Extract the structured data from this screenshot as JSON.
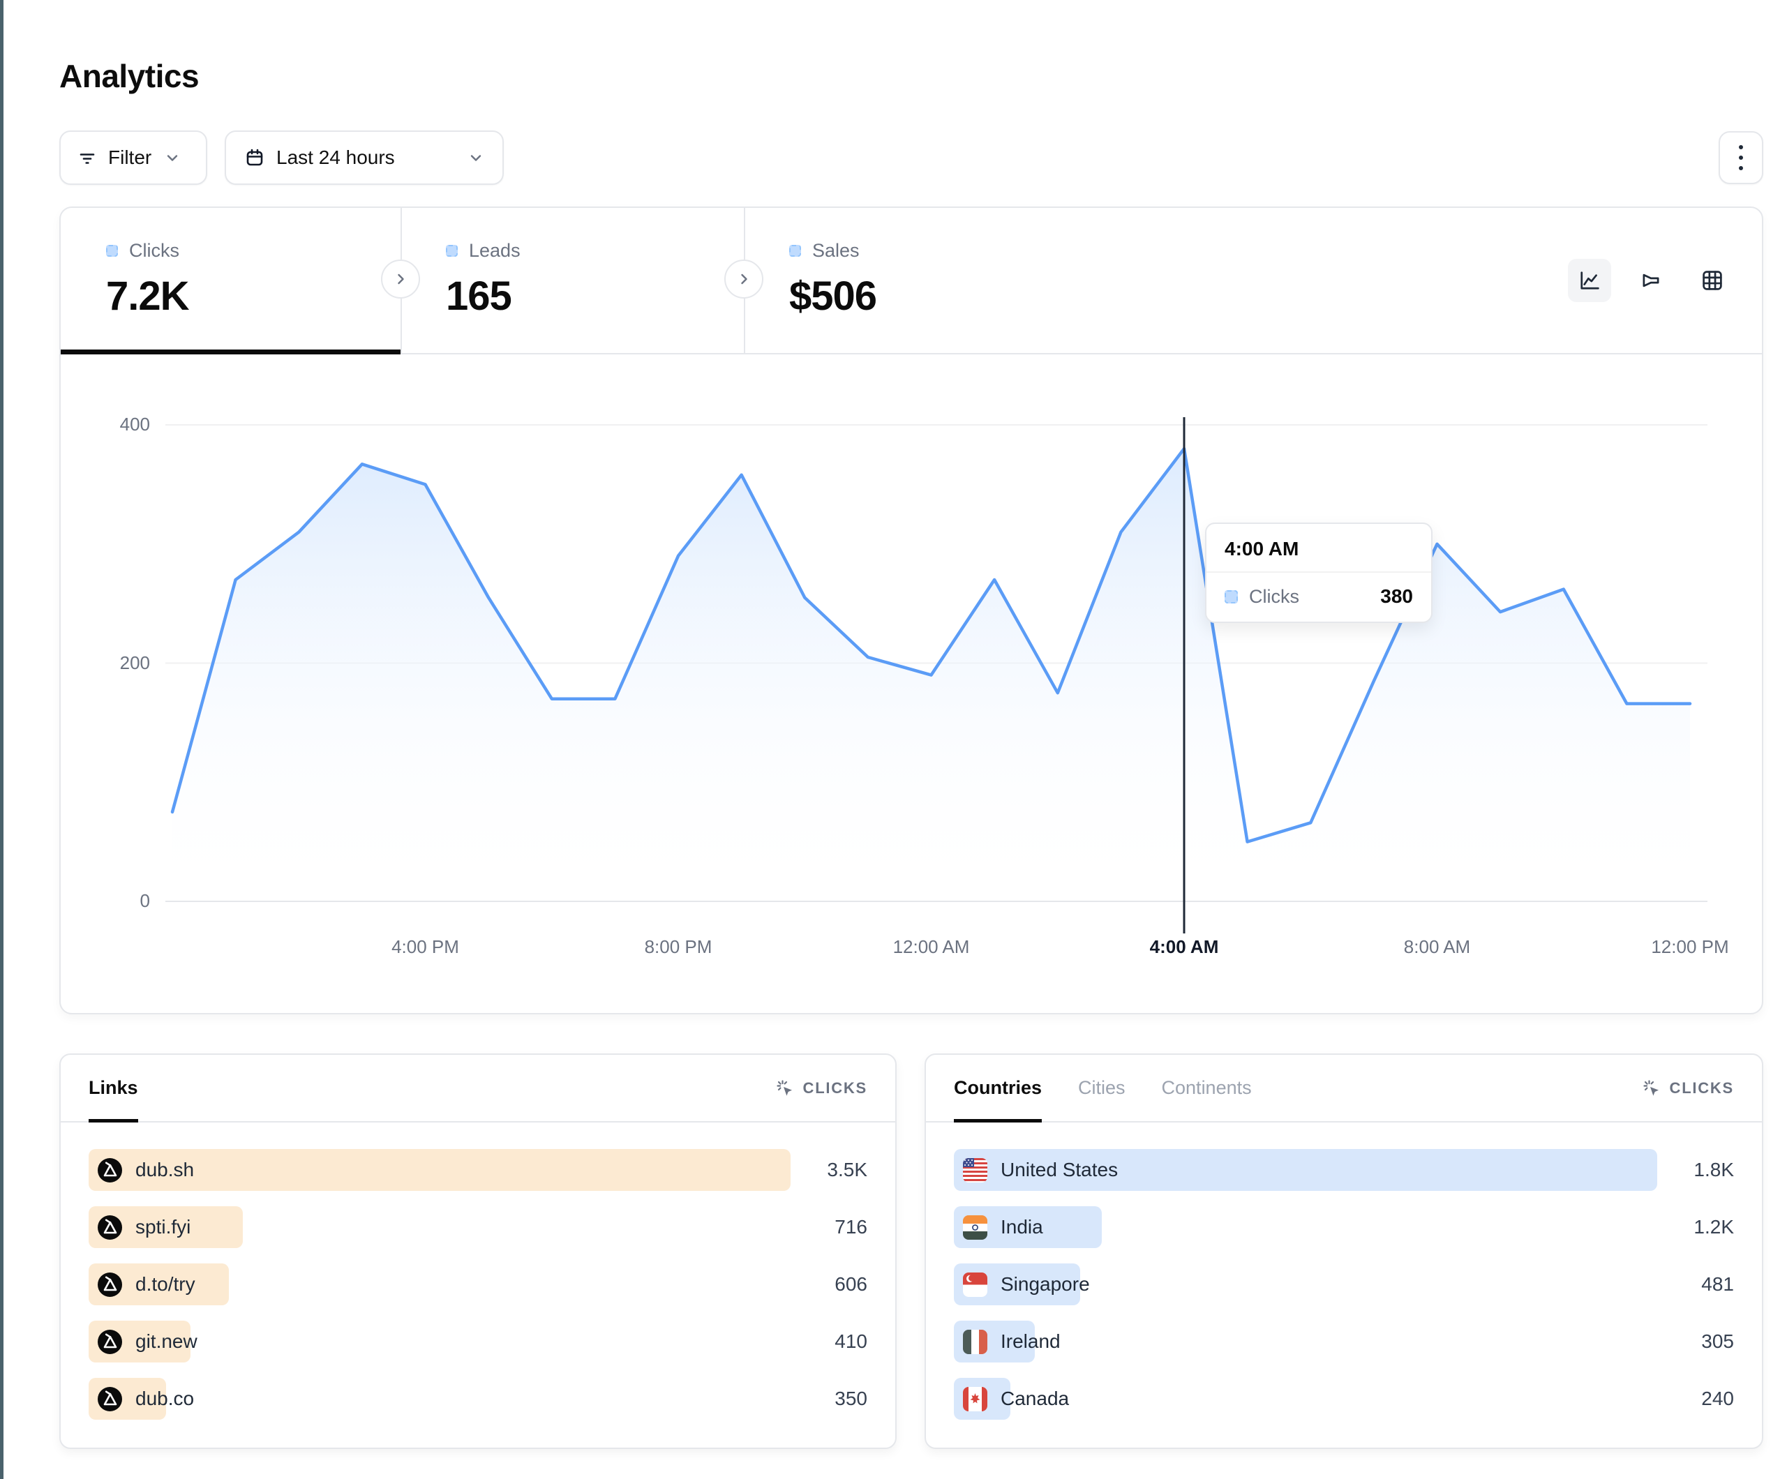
{
  "page": {
    "title": "Analytics"
  },
  "toolbar": {
    "filter_label": "Filter",
    "filter_icon": "filter-lines-icon",
    "date_range_label": "Last 24 hours",
    "date_icon": "calendar-icon",
    "menu_icon": "kebab-menu-icon"
  },
  "stats": {
    "clicks": {
      "label": "Clicks",
      "value": "7.2K",
      "active": true
    },
    "leads": {
      "label": "Leads",
      "value": "165",
      "active": false
    },
    "sales": {
      "label": "Sales",
      "value": "$506",
      "active": false
    }
  },
  "chart_type_toggles": [
    "line-chart-icon",
    "funnel-chart-icon",
    "table-grid-icon"
  ],
  "chart_data": {
    "type": "area",
    "series_name": "Clicks",
    "x": [
      "12:00 PM",
      "1:00 PM",
      "2:00 PM",
      "3:00 PM",
      "4:00 PM",
      "5:00 PM",
      "6:00 PM",
      "7:00 PM",
      "8:00 PM",
      "9:00 PM",
      "10:00 PM",
      "11:00 PM",
      "12:00 AM",
      "1:00 AM",
      "2:00 AM",
      "3:00 AM",
      "4:00 AM",
      "5:00 AM",
      "6:00 AM",
      "7:00 AM",
      "8:00 AM",
      "9:00 AM",
      "10:00 AM",
      "11:00 AM",
      "12:00 PM"
    ],
    "values": [
      75,
      270,
      310,
      367,
      350,
      255,
      170,
      170,
      290,
      358,
      255,
      205,
      190,
      270,
      175,
      310,
      380,
      50,
      66,
      185,
      300,
      243,
      262,
      166,
      166
    ],
    "ylim": [
      0,
      400
    ],
    "yticks": [
      400,
      200,
      0
    ],
    "xtick_labels": [
      "4:00 PM",
      "8:00 PM",
      "12:00 AM",
      "4:00 AM",
      "8:00 AM",
      "12:00 PM"
    ],
    "xtick_indices": [
      4,
      8,
      12,
      16,
      20,
      24
    ],
    "grid": "horizontal",
    "legend": "none",
    "line_color": "#5b9cf6",
    "hover_index": 16
  },
  "tooltip": {
    "time": "4:00 AM",
    "series": "Clicks",
    "value": "380"
  },
  "links_panel": {
    "tab": "Links",
    "metric": "CLICKS",
    "metric_icon": "cursor-click-icon",
    "row_icon": "dub-logo-icon",
    "rows": [
      {
        "label": "dub.sh",
        "value": "3.5K",
        "bar_pct": 100
      },
      {
        "label": "spti.fyi",
        "value": "716",
        "bar_pct": 22
      },
      {
        "label": "d.to/try",
        "value": "606",
        "bar_pct": 20
      },
      {
        "label": "git.new",
        "value": "410",
        "bar_pct": 14.5
      },
      {
        "label": "dub.co",
        "value": "350",
        "bar_pct": 11
      }
    ]
  },
  "countries_panel": {
    "tabs": {
      "countries": "Countries",
      "cities": "Cities",
      "continents": "Continents"
    },
    "active_tab": "Countries",
    "metric": "CLICKS",
    "metric_icon": "cursor-click-icon",
    "rows": [
      {
        "label": "United States",
        "value": "1.8K",
        "bar_pct": 100,
        "flag": "us"
      },
      {
        "label": "India",
        "value": "1.2K",
        "bar_pct": 21,
        "flag": "in"
      },
      {
        "label": "Singapore",
        "value": "481",
        "bar_pct": 18,
        "flag": "sg"
      },
      {
        "label": "Ireland",
        "value": "305",
        "bar_pct": 11.5,
        "flag": "ie"
      },
      {
        "label": "Canada",
        "value": "240",
        "bar_pct": 8,
        "flag": "ca"
      }
    ]
  },
  "colors": {
    "accent_blue": "#5b9cf6",
    "area_fill_top": "#dbeafe",
    "links_bar": "#fcead2",
    "countries_bar": "#d8e7fb",
    "border": "#e5e7eb",
    "muted_text": "#6b7280",
    "crosshair": "#1f2937"
  }
}
